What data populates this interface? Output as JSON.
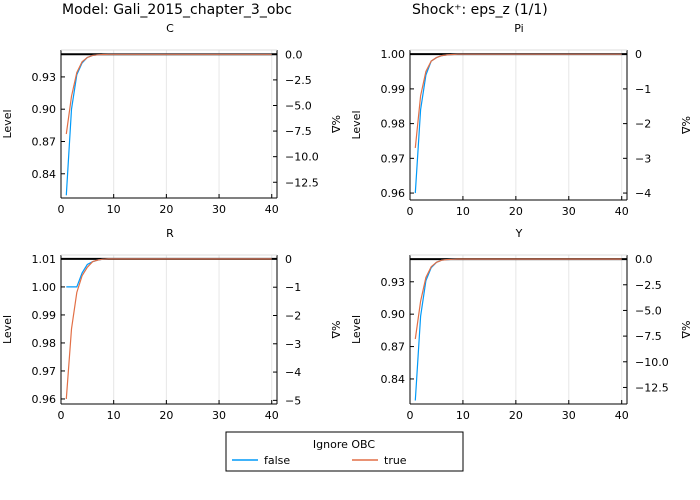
{
  "chart_data": {
    "type": "line",
    "suptitle_model": "Model: Gali_2015_chapter_3_obc",
    "suptitle_shock": "Shock⁺: eps_z  (1/1)",
    "legend": {
      "title": "Ignore OBC",
      "entries": [
        "false",
        "true"
      ],
      "colors": [
        "#009af9",
        "#e26f46"
      ],
      "placement": "bottom-center"
    },
    "x": [
      1,
      2,
      3,
      4,
      5,
      6,
      7,
      8,
      9,
      10,
      11,
      12,
      13,
      14,
      15,
      16,
      17,
      18,
      19,
      20,
      21,
      22,
      23,
      24,
      25,
      26,
      27,
      28,
      29,
      30,
      31,
      32,
      33,
      34,
      35,
      36,
      37,
      38,
      39,
      40
    ],
    "xticks": [
      "0",
      "10",
      "20",
      "30",
      "40"
    ],
    "xlim": [
      0,
      41
    ],
    "panels": [
      {
        "title": "C",
        "ylabel": "Level",
        "ylabel_right": "%Δ",
        "steady_state": 0.951,
        "ylim": [
          0.8175,
          0.955
        ],
        "yticks": [
          "0.84",
          "0.87",
          "0.90",
          "0.93"
        ],
        "yticks_right": [
          "0.0",
          "−2.5",
          "−5.0",
          "−7.5",
          "−10.0",
          "−12.5"
        ],
        "series": [
          {
            "name": "false",
            "values": [
              0.82,
              0.9,
              0.932,
              0.943,
              0.948,
              0.95,
              0.9505,
              0.9508,
              0.951,
              0.951,
              0.951,
              0.951,
              0.951,
              0.951,
              0.951,
              0.951,
              0.951,
              0.951,
              0.951,
              0.951,
              0.951,
              0.951,
              0.951,
              0.951,
              0.951,
              0.951,
              0.951,
              0.951,
              0.951,
              0.951,
              0.951,
              0.951,
              0.951,
              0.951,
              0.951,
              0.951,
              0.951,
              0.951,
              0.951,
              0.951
            ]
          },
          {
            "name": "true",
            "values": [
              0.877,
              0.912,
              0.934,
              0.944,
              0.948,
              0.95,
              0.9505,
              0.9508,
              0.951,
              0.951,
              0.951,
              0.951,
              0.951,
              0.951,
              0.951,
              0.951,
              0.951,
              0.951,
              0.951,
              0.951,
              0.951,
              0.951,
              0.951,
              0.951,
              0.951,
              0.951,
              0.951,
              0.951,
              0.951,
              0.951,
              0.951,
              0.951,
              0.951,
              0.951,
              0.951,
              0.951,
              0.951,
              0.951,
              0.951,
              0.951
            ]
          }
        ]
      },
      {
        "title": "Pi",
        "ylabel": "Level",
        "ylabel_right": "%Δ",
        "steady_state": 1.0,
        "ylim": [
          0.958,
          1.0012
        ],
        "yticks": [
          "0.96",
          "0.97",
          "0.98",
          "0.99",
          "1.00"
        ],
        "yticks_right": [
          "0",
          "−1",
          "−2",
          "−3",
          "−4"
        ],
        "series": [
          {
            "name": "false",
            "values": [
              0.96,
              0.984,
              0.994,
              0.998,
              0.999,
              0.9996,
              0.9998,
              0.9999,
              1.0,
              1.0,
              1.0,
              1.0,
              1.0,
              1.0,
              1.0,
              1.0,
              1.0,
              1.0,
              1.0,
              1.0,
              1.0,
              1.0,
              1.0,
              1.0,
              1.0,
              1.0,
              1.0,
              1.0,
              1.0,
              1.0,
              1.0,
              1.0,
              1.0,
              1.0,
              1.0,
              1.0,
              1.0,
              1.0,
              1.0,
              1.0
            ]
          },
          {
            "name": "true",
            "values": [
              0.973,
              0.988,
              0.995,
              0.998,
              0.999,
              0.9996,
              0.9998,
              0.9999,
              1.0,
              1.0,
              1.0,
              1.0,
              1.0,
              1.0,
              1.0,
              1.0,
              1.0,
              1.0,
              1.0,
              1.0,
              1.0,
              1.0,
              1.0,
              1.0,
              1.0,
              1.0,
              1.0,
              1.0,
              1.0,
              1.0,
              1.0,
              1.0,
              1.0,
              1.0,
              1.0,
              1.0,
              1.0,
              1.0,
              1.0,
              1.0
            ]
          }
        ]
      },
      {
        "title": "R",
        "ylabel": "Level",
        "ylabel_right": "%Δ",
        "steady_state": 1.01,
        "ylim": [
          0.9582,
          1.0114
        ],
        "yticks": [
          "0.96",
          "0.97",
          "0.98",
          "0.99",
          "1.00",
          "1.01"
        ],
        "yticks_right": [
          "0",
          "−1",
          "−2",
          "−3",
          "−4",
          "−5"
        ],
        "series": [
          {
            "name": "false",
            "values": [
              1.0,
              1.0,
              1.0,
              1.005,
              1.008,
              1.009,
              1.0096,
              1.0099,
              1.01,
              1.01,
              1.01,
              1.01,
              1.01,
              1.01,
              1.01,
              1.01,
              1.01,
              1.01,
              1.01,
              1.01,
              1.01,
              1.01,
              1.01,
              1.01,
              1.01,
              1.01,
              1.01,
              1.01,
              1.01,
              1.01,
              1.01,
              1.01,
              1.01,
              1.01,
              1.01,
              1.01,
              1.01,
              1.01,
              1.01,
              1.01
            ]
          },
          {
            "name": "true",
            "values": [
              0.96,
              0.985,
              0.998,
              1.004,
              1.007,
              1.009,
              1.0096,
              1.0099,
              1.01,
              1.01,
              1.01,
              1.01,
              1.01,
              1.01,
              1.01,
              1.01,
              1.01,
              1.01,
              1.01,
              1.01,
              1.01,
              1.01,
              1.01,
              1.01,
              1.01,
              1.01,
              1.01,
              1.01,
              1.01,
              1.01,
              1.01,
              1.01,
              1.01,
              1.01,
              1.01,
              1.01,
              1.01,
              1.01,
              1.01,
              1.01
            ]
          }
        ]
      },
      {
        "title": "Y",
        "ylabel": "Level",
        "ylabel_right": "%Δ",
        "steady_state": 0.951,
        "ylim": [
          0.8168,
          0.9548
        ],
        "yticks": [
          "0.84",
          "0.87",
          "0.90",
          "0.93"
        ],
        "yticks_right": [
          "0.0",
          "−2.5",
          "−5.0",
          "−7.5",
          "−10.0",
          "−12.5"
        ],
        "series": [
          {
            "name": "false",
            "values": [
              0.82,
              0.898,
              0.931,
              0.943,
              0.948,
              0.95,
              0.9505,
              0.9508,
              0.951,
              0.951,
              0.951,
              0.951,
              0.951,
              0.951,
              0.951,
              0.951,
              0.951,
              0.951,
              0.951,
              0.951,
              0.951,
              0.951,
              0.951,
              0.951,
              0.951,
              0.951,
              0.951,
              0.951,
              0.951,
              0.951,
              0.951,
              0.951,
              0.951,
              0.951,
              0.951,
              0.951,
              0.951,
              0.951,
              0.951,
              0.951
            ]
          },
          {
            "name": "true",
            "values": [
              0.877,
              0.912,
              0.934,
              0.944,
              0.948,
              0.95,
              0.9505,
              0.9508,
              0.951,
              0.951,
              0.951,
              0.951,
              0.951,
              0.951,
              0.951,
              0.951,
              0.951,
              0.951,
              0.951,
              0.951,
              0.951,
              0.951,
              0.951,
              0.951,
              0.951,
              0.951,
              0.951,
              0.951,
              0.951,
              0.951,
              0.951,
              0.951,
              0.951,
              0.951,
              0.951,
              0.951,
              0.951,
              0.951,
              0.951,
              0.951
            ]
          }
        ]
      }
    ]
  }
}
